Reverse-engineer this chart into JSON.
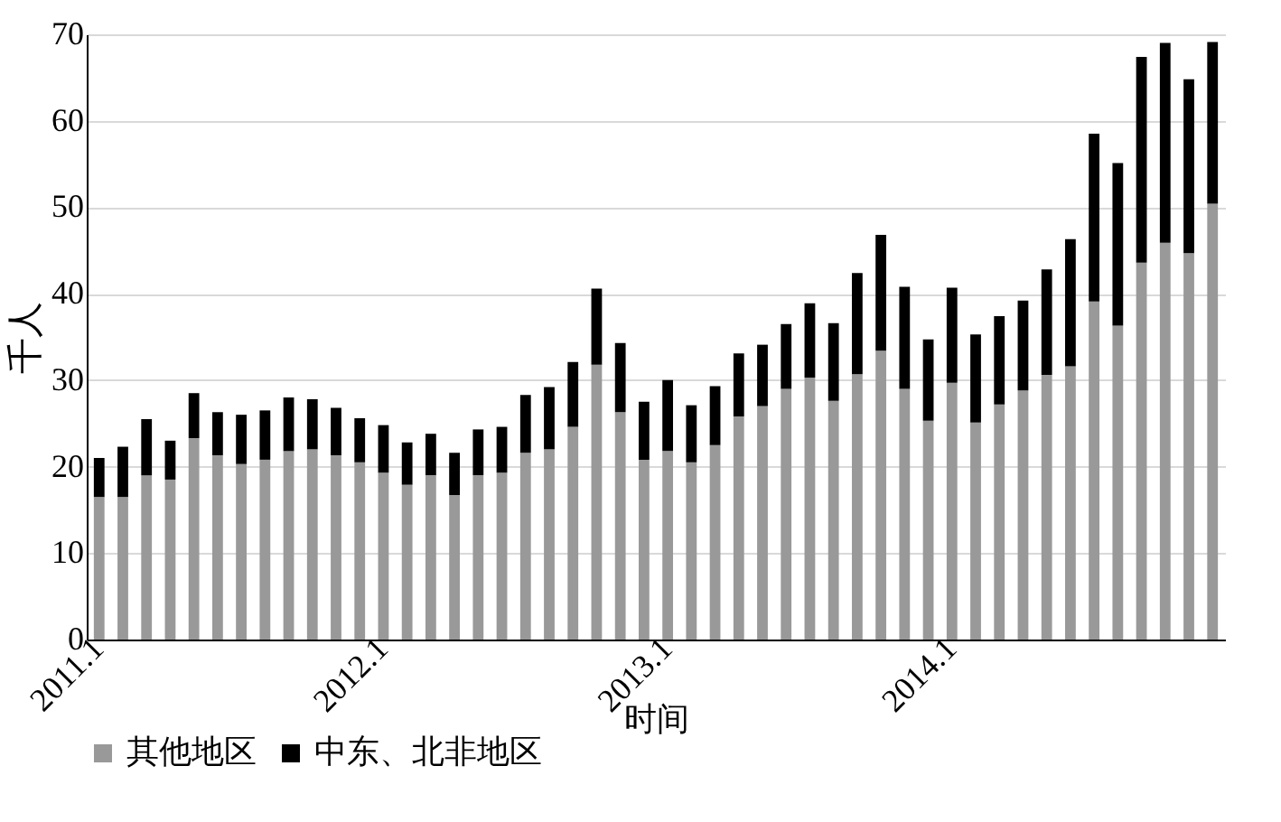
{
  "chart_data": {
    "type": "bar",
    "stacked": true,
    "xlabel": "时间",
    "ylabel": "千人",
    "categories": [
      "2011.1",
      null,
      null,
      null,
      null,
      null,
      null,
      null,
      null,
      null,
      null,
      null,
      "2012.1",
      null,
      null,
      null,
      null,
      null,
      null,
      null,
      null,
      null,
      null,
      null,
      "2013.1",
      null,
      null,
      null,
      null,
      null,
      null,
      null,
      null,
      null,
      null,
      null,
      "2014.1",
      null,
      null,
      null,
      null,
      null,
      null,
      null,
      null,
      null,
      null,
      null
    ],
    "series": [
      {
        "name": "其他地区",
        "color": "#999999",
        "values": [
          16.5,
          16.5,
          19,
          18.5,
          23.3,
          21.3,
          20.3,
          20.8,
          21.8,
          22,
          21.3,
          20.5,
          19.3,
          17.9,
          19,
          16.7,
          19,
          19.3,
          21.6,
          22,
          24.6,
          31.8,
          26.3,
          20.8,
          21.8,
          20.5,
          22.5,
          25.8,
          27,
          29,
          30.3,
          27.6,
          30.7,
          33.4,
          29,
          25.3,
          29.7,
          25.1,
          27.2,
          28.8,
          30.6,
          31.6,
          39.1,
          36.3,
          43.6,
          45.9,
          44.7,
          50.4
        ]
      },
      {
        "name": "中东、北非地区",
        "color": "#000000",
        "values": [
          4.5,
          5.8,
          6.5,
          4.5,
          5.2,
          5,
          5.7,
          5.7,
          6.2,
          5.8,
          5.5,
          5.1,
          5.5,
          4.9,
          4.8,
          4.9,
          5.3,
          5.3,
          6.7,
          7.2,
          7.5,
          8.8,
          8,
          6.7,
          8.2,
          6.6,
          6.8,
          7.3,
          7.1,
          7.5,
          8.6,
          9,
          11.7,
          13.4,
          11.8,
          9.4,
          11,
          10.2,
          10.2,
          10.4,
          12.2,
          14.7,
          19.4,
          18.8,
          23.8,
          23.1,
          20.1,
          18.7
        ]
      }
    ],
    "ylim": [
      0,
      70
    ],
    "yticks": [
      0,
      10,
      20,
      30,
      40,
      50,
      60,
      70
    ],
    "grid": "y",
    "legend": "bottom"
  }
}
